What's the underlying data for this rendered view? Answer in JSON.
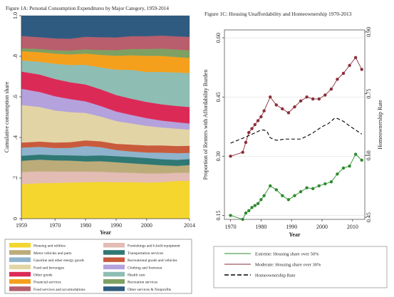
{
  "chart_data": [
    {
      "type": "area",
      "title": "Figure 1A: Personal Consumption Expenditures by Major Category, 1959-2014",
      "xlabel": "Year",
      "ylabel": "Cumulative consumption share",
      "xlim": [
        1959,
        2014
      ],
      "ylim": [
        0,
        1
      ],
      "x_ticks": [
        1959,
        1970,
        1980,
        1990,
        2000,
        2014
      ],
      "y_ticks": [
        "0",
        ".2",
        ".4",
        ".6",
        ".8",
        "1.0"
      ],
      "stacked": true,
      "legend_position": "bottom",
      "x": [
        1959,
        1965,
        1970,
        1975,
        1980,
        1985,
        1990,
        1995,
        2000,
        2005,
        2010,
        2014
      ],
      "series": [
        {
          "name": "Housing and utilities",
          "color": "#f4d62e",
          "values": [
            0.17,
            0.175,
            0.176,
            0.178,
            0.18,
            0.181,
            0.18,
            0.18,
            0.178,
            0.18,
            0.186,
            0.186
          ]
        },
        {
          "name": "Furnishings and h.hold equipment",
          "color": "#e3bcb4",
          "values": [
            0.06,
            0.058,
            0.056,
            0.054,
            0.052,
            0.05,
            0.048,
            0.046,
            0.045,
            0.043,
            0.04,
            0.04
          ]
        },
        {
          "name": "Motor vehicles and parts",
          "color": "#bcac7a",
          "values": [
            0.055,
            0.058,
            0.055,
            0.054,
            0.05,
            0.052,
            0.05,
            0.047,
            0.045,
            0.04,
            0.034,
            0.038
          ]
        },
        {
          "name": "Transportation services",
          "color": "#2f7873",
          "values": [
            0.025,
            0.025,
            0.026,
            0.026,
            0.028,
            0.029,
            0.03,
            0.031,
            0.031,
            0.03,
            0.03,
            0.03
          ]
        },
        {
          "name": "Gasoline and other energy goods",
          "color": "#8fb3cc",
          "values": [
            0.04,
            0.038,
            0.035,
            0.037,
            0.048,
            0.04,
            0.03,
            0.027,
            0.027,
            0.032,
            0.033,
            0.03
          ]
        },
        {
          "name": "Recreational goods and vehicles",
          "color": "#c95b3c",
          "values": [
            0.025,
            0.026,
            0.027,
            0.028,
            0.028,
            0.029,
            0.031,
            0.034,
            0.035,
            0.036,
            0.035,
            0.035
          ]
        },
        {
          "name": "Food and beverages",
          "color": "#e3d4a6",
          "values": [
            0.185,
            0.17,
            0.158,
            0.148,
            0.135,
            0.122,
            0.112,
            0.104,
            0.096,
            0.088,
            0.085,
            0.08
          ]
        },
        {
          "name": "Clothing and footwear",
          "color": "#b4a2dc",
          "values": [
            0.08,
            0.074,
            0.07,
            0.064,
            0.057,
            0.052,
            0.047,
            0.042,
            0.038,
            0.034,
            0.032,
            0.03
          ]
        },
        {
          "name": "Other goods",
          "color": "#dc2a57",
          "values": [
            0.085,
            0.086,
            0.085,
            0.083,
            0.083,
            0.082,
            0.081,
            0.08,
            0.08,
            0.08,
            0.08,
            0.081
          ]
        },
        {
          "name": "Health care",
          "color": "#8ebdb3",
          "values": [
            0.055,
            0.063,
            0.075,
            0.085,
            0.097,
            0.108,
            0.125,
            0.142,
            0.148,
            0.16,
            0.165,
            0.167
          ]
        },
        {
          "name": "Financial services",
          "color": "#f5a01c",
          "values": [
            0.045,
            0.047,
            0.05,
            0.052,
            0.055,
            0.062,
            0.068,
            0.072,
            0.079,
            0.079,
            0.076,
            0.075
          ]
        },
        {
          "name": "Recreation services",
          "color": "#7ea063",
          "values": [
            0.015,
            0.016,
            0.017,
            0.019,
            0.021,
            0.024,
            0.028,
            0.031,
            0.034,
            0.036,
            0.037,
            0.038
          ]
        },
        {
          "name": "Food services and accomodations",
          "color": "#b85e6c",
          "values": [
            0.06,
            0.058,
            0.058,
            0.059,
            0.062,
            0.063,
            0.063,
            0.063,
            0.063,
            0.064,
            0.065,
            0.066
          ]
        },
        {
          "name": "Other services & Nonprofits",
          "color": "#2f5b80",
          "values": [
            0.1,
            0.106,
            0.112,
            0.113,
            0.104,
            0.106,
            0.107,
            0.101,
            0.101,
            0.098,
            0.102,
            0.104
          ]
        }
      ]
    },
    {
      "type": "line",
      "title": "Figure 1C: Housing Unaffordability and Homeownership 1970-2013",
      "xlabel": "Year",
      "ylabel": "Proportion of Renters with Affordability Burden",
      "y2label": "Homeownership Rate",
      "xlim": [
        1968,
        2014
      ],
      "ylim": [
        0.14,
        0.62
      ],
      "y2lim": [
        0.445,
        0.905
      ],
      "x_ticks": [
        1970,
        1980,
        1990,
        2000,
        2010
      ],
      "y_ticks": [
        0.15,
        0.3,
        0.45,
        0.6
      ],
      "y_tick_labels": [
        "0.15",
        "0.30",
        "0.45",
        "0.60"
      ],
      "y2_ticks": [
        0.45,
        0.6,
        0.75,
        0.9
      ],
      "y2_tick_labels": [
        "0.45",
        "0.60",
        "0.75",
        "0.90"
      ],
      "grid": true,
      "legend_position": "bottom",
      "series": [
        {
          "name": "Extreme: Housing share over 50%",
          "color": "#2e8b2e",
          "axis": "left",
          "x": [
            1970,
            1974,
            1975,
            1976,
            1977,
            1978,
            1979,
            1980,
            1981,
            1983,
            1985,
            1987,
            1989,
            1991,
            1993,
            1995,
            1997,
            1999,
            2001,
            2003,
            2005,
            2007,
            2009,
            2011,
            2013
          ],
          "y": [
            0.15,
            0.14,
            0.156,
            0.162,
            0.17,
            0.175,
            0.18,
            0.19,
            0.2,
            0.225,
            0.215,
            0.2,
            0.19,
            0.2,
            0.21,
            0.22,
            0.218,
            0.225,
            0.23,
            0.235,
            0.255,
            0.27,
            0.275,
            0.305,
            0.29
          ]
        },
        {
          "name": "Moderate: Housing share over 30%",
          "color": "#8b2e3a",
          "axis": "left",
          "x": [
            1970,
            1974,
            1975,
            1976,
            1977,
            1978,
            1979,
            1980,
            1981,
            1983,
            1985,
            1987,
            1989,
            1991,
            1993,
            1995,
            1997,
            1999,
            2001,
            2003,
            2005,
            2007,
            2009,
            2011,
            2013
          ],
          "y": [
            0.3,
            0.31,
            0.335,
            0.36,
            0.37,
            0.38,
            0.39,
            0.4,
            0.415,
            0.45,
            0.43,
            0.42,
            0.41,
            0.425,
            0.44,
            0.45,
            0.445,
            0.445,
            0.455,
            0.47,
            0.495,
            0.51,
            0.53,
            0.55,
            0.52
          ]
        },
        {
          "name": "Homeownership Rate",
          "color": "#000000",
          "axis": "right",
          "dashed": true,
          "x": [
            1970,
            1975,
            1978,
            1980,
            1981,
            1982,
            1983,
            1985,
            1988,
            1990,
            1993,
            1995,
            1997,
            2000,
            2002,
            2004,
            2005,
            2007,
            2009,
            2011,
            2013
          ],
          "y": [
            0.63,
            0.645,
            0.655,
            0.662,
            0.662,
            0.658,
            0.643,
            0.637,
            0.64,
            0.64,
            0.64,
            0.647,
            0.655,
            0.67,
            0.677,
            0.69,
            0.69,
            0.683,
            0.672,
            0.662,
            0.652
          ]
        }
      ]
    }
  ]
}
